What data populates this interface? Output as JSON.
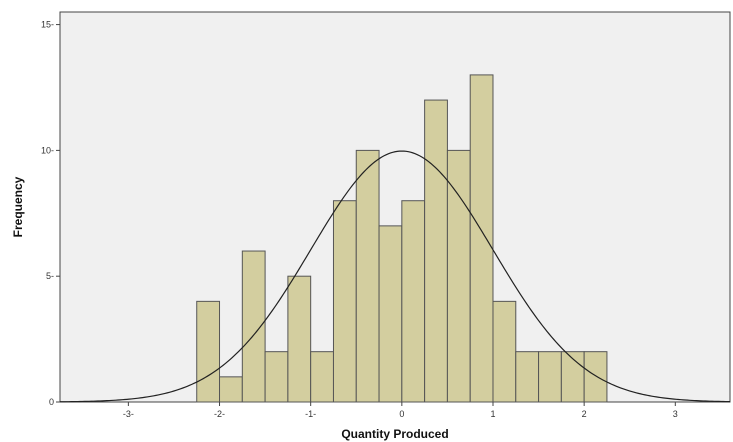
{
  "chart_data": {
    "type": "bar",
    "subtype": "histogram-with-normal-curve",
    "title": "",
    "xlabel": "Quantity Produced",
    "ylabel": "Frequency",
    "xlim": [
      -3.75,
      3.6
    ],
    "ylim": [
      0,
      15.5
    ],
    "x_ticks": [
      -3,
      -2,
      -1,
      0,
      1,
      2,
      3
    ],
    "x_tick_labels": [
      "-3-",
      "-2-",
      "-1-",
      "0",
      "1",
      "2",
      "3"
    ],
    "y_ticks": [
      0,
      5,
      10,
      15
    ],
    "y_tick_labels": [
      "0",
      "5-",
      "10-",
      "15-"
    ],
    "bin_width": 0.25,
    "bins": [
      {
        "start": -2.25,
        "end": -2.0,
        "count": 4
      },
      {
        "start": -2.0,
        "end": -1.75,
        "count": 1
      },
      {
        "start": -1.75,
        "end": -1.5,
        "count": 6
      },
      {
        "start": -1.5,
        "end": -1.25,
        "count": 2
      },
      {
        "start": -1.25,
        "end": -1.0,
        "count": 5
      },
      {
        "start": -1.0,
        "end": -0.75,
        "count": 2
      },
      {
        "start": -0.75,
        "end": -0.5,
        "count": 8
      },
      {
        "start": -0.5,
        "end": -0.25,
        "count": 10
      },
      {
        "start": -0.25,
        "end": 0.0,
        "count": 7
      },
      {
        "start": 0.0,
        "end": 0.25,
        "count": 8
      },
      {
        "start": 0.25,
        "end": 0.5,
        "count": 12
      },
      {
        "start": 0.5,
        "end": 0.75,
        "count": 10
      },
      {
        "start": 0.75,
        "end": 1.0,
        "count": 13
      },
      {
        "start": 1.0,
        "end": 1.25,
        "count": 4
      },
      {
        "start": 1.25,
        "end": 1.5,
        "count": 2
      },
      {
        "start": 1.5,
        "end": 1.75,
        "count": 2
      },
      {
        "start": 1.75,
        "end": 2.0,
        "count": 2
      },
      {
        "start": 2.0,
        "end": 2.25,
        "count": 2
      }
    ],
    "normal_curve": {
      "mean": 0.0,
      "std_dev": 1.0
    },
    "grid": false,
    "colors": {
      "plot_background": "#f0f0f0",
      "bar_fill": "#d3ce9f",
      "bar_stroke": "#555555",
      "curve": "#222222",
      "axis": "#444444"
    }
  }
}
